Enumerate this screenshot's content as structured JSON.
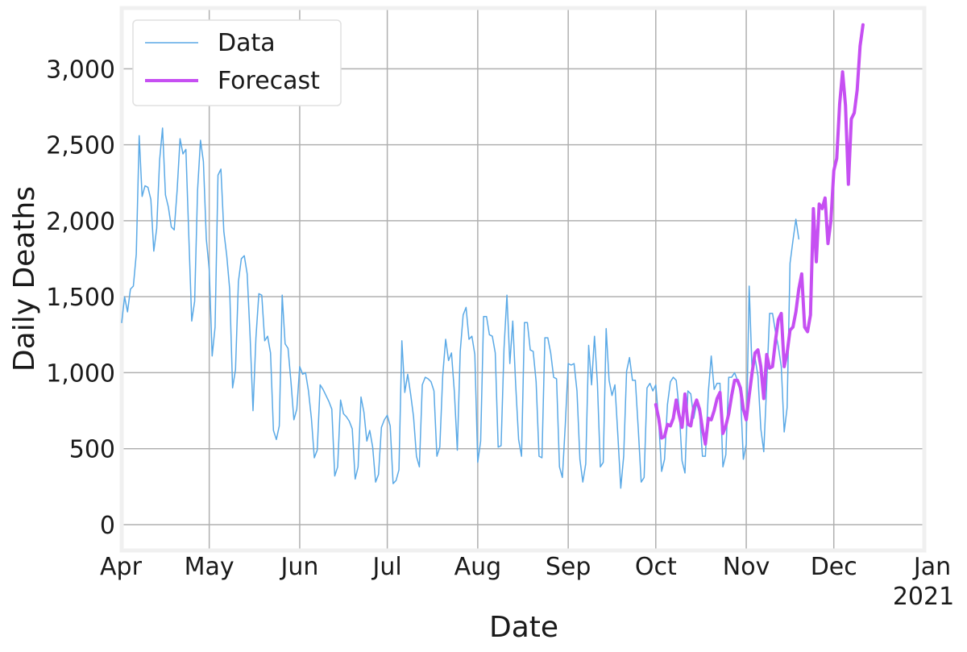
{
  "chart_data": {
    "type": "line",
    "title": "",
    "xlabel": "Date",
    "ylabel": "Daily Deaths",
    "x_range": [
      "2020-04-01",
      "2021-01-01"
    ],
    "y_range": [
      -170,
      3400
    ],
    "grid": true,
    "legend_position": "top-left",
    "x_ticks": [
      {
        "date": "2020-04-01",
        "label": "Apr"
      },
      {
        "date": "2020-05-01",
        "label": "May"
      },
      {
        "date": "2020-06-01",
        "label": "Jun"
      },
      {
        "date": "2020-07-01",
        "label": "Jul"
      },
      {
        "date": "2020-08-01",
        "label": "Aug"
      },
      {
        "date": "2020-09-01",
        "label": "Sep"
      },
      {
        "date": "2020-10-01",
        "label": "Oct"
      },
      {
        "date": "2020-11-01",
        "label": "Nov"
      },
      {
        "date": "2020-12-01",
        "label": "Dec"
      },
      {
        "date": "2021-01-01",
        "label": "Jan",
        "sublabel": "2021"
      }
    ],
    "y_ticks": [
      {
        "value": 0,
        "label": "0"
      },
      {
        "value": 500,
        "label": "500"
      },
      {
        "value": 1000,
        "label": "1,000"
      },
      {
        "value": 1500,
        "label": "1,500"
      },
      {
        "value": 2000,
        "label": "2,000"
      },
      {
        "value": 2500,
        "label": "2,500"
      },
      {
        "value": 3000,
        "label": "3,000"
      }
    ],
    "series": [
      {
        "name": "Data",
        "color": "#5aa9e6",
        "line_width": 1.5,
        "start_date": "2020-04-01",
        "values": [
          1330,
          1500,
          1400,
          1550,
          1570,
          1780,
          2560,
          2160,
          2230,
          2220,
          2140,
          1800,
          1950,
          2400,
          2610,
          2170,
          2090,
          1960,
          1940,
          2200,
          2540,
          2440,
          2470,
          1900,
          1340,
          1470,
          2200,
          2530,
          2390,
          1880,
          1680,
          1110,
          1300,
          2300,
          2340,
          1930,
          1770,
          1550,
          900,
          1020,
          1600,
          1750,
          1770,
          1650,
          1240,
          750,
          1230,
          1520,
          1510,
          1210,
          1240,
          1130,
          620,
          560,
          650,
          1510,
          1190,
          1160,
          940,
          690,
          760,
          1040,
          990,
          1000,
          880,
          700,
          440,
          490,
          920,
          890,
          850,
          810,
          760,
          320,
          380,
          820,
          730,
          710,
          680,
          630,
          300,
          380,
          840,
          740,
          550,
          620,
          510,
          280,
          330,
          640,
          690,
          720,
          650,
          270,
          290,
          360,
          1210,
          870,
          990,
          860,
          710,
          450,
          380,
          920,
          970,
          960,
          940,
          880,
          450,
          510,
          980,
          1220,
          1080,
          1130,
          870,
          490,
          1140,
          1380,
          1430,
          1220,
          1240,
          1120,
          410,
          550,
          1370,
          1370,
          1250,
          1240,
          1130,
          510,
          520,
          1160,
          1510,
          1060,
          1340,
          920,
          560,
          450,
          1330,
          1330,
          1150,
          1140,
          940,
          450,
          440,
          1230,
          1230,
          1130,
          970,
          960,
          380,
          310,
          660,
          1060,
          1050,
          1060,
          880,
          430,
          280,
          400,
          1180,
          920,
          1240,
          930,
          380,
          410,
          1290,
          950,
          850,
          920,
          590,
          240,
          450,
          1010,
          1100,
          950,
          950,
          630,
          280,
          310,
          900,
          930,
          880,
          920,
          680,
          350,
          430,
          790,
          940,
          970,
          950,
          760,
          420,
          340,
          880,
          860,
          700,
          800,
          730,
          450,
          450,
          870,
          1110,
          890,
          930,
          930,
          380,
          460,
          970,
          970,
          1000,
          950,
          870,
          430,
          530,
          1570,
          1010,
          1100,
          980,
          630,
          480,
          920,
          1390,
          1390,
          1270,
          1170,
          1040,
          610,
          770,
          1720,
          1870,
          2010,
          1880
        ]
      },
      {
        "name": "Forecast",
        "color": "#c64ff2",
        "line_width": 4,
        "start_date": "2020-10-01",
        "values": [
          790,
          700,
          570,
          580,
          660,
          650,
          700,
          820,
          720,
          640,
          860,
          660,
          650,
          770,
          820,
          760,
          630,
          530,
          700,
          690,
          750,
          830,
          870,
          600,
          650,
          730,
          850,
          950,
          950,
          900,
          760,
          690,
          850,
          1000,
          1130,
          1150,
          1040,
          830,
          1120,
          1030,
          1040,
          1210,
          1350,
          1390,
          1040,
          1130,
          1280,
          1300,
          1400,
          1550,
          1650,
          1300,
          1270,
          1380,
          2080,
          1730,
          2110,
          2080,
          2150,
          1850,
          2000,
          2330,
          2410,
          2770,
          2980,
          2760,
          2240,
          2670,
          2710,
          2860,
          3150,
          3290
        ]
      }
    ]
  }
}
